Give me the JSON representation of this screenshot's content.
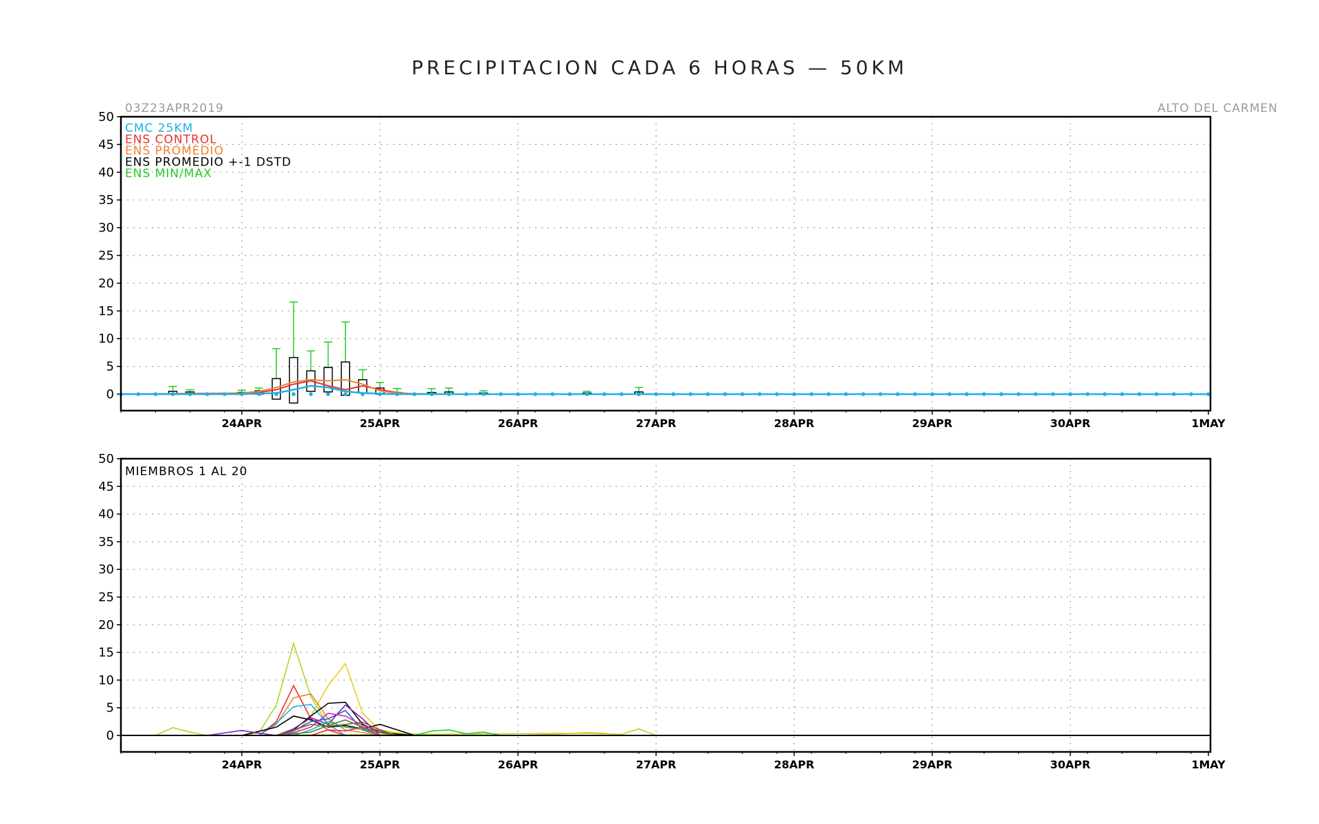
{
  "title": "PRECIPITACION CADA 6 HORAS — 50KM",
  "init_time": "03Z23APR2019",
  "location": "ALTO DEL CARMEN",
  "x_labels": [
    "24APR",
    "25APR",
    "26APR",
    "27APR",
    "28APR",
    "29APR",
    "30APR",
    "1MAY"
  ],
  "y_ticks": [
    0,
    5,
    10,
    15,
    20,
    25,
    30,
    35,
    40,
    45,
    50
  ],
  "colors": {
    "cmc": "#1ab0e8",
    "control": "#e83030",
    "promedio": "#f08030",
    "box": "#000000",
    "minmax": "#22cc22"
  },
  "chart_data": [
    {
      "type": "line",
      "x_unit": "days from 00Z 24APR",
      "xlim": [
        -0.875,
        7
      ],
      "ylim": [
        -3,
        50
      ],
      "grid": true,
      "legend_position": "top-left",
      "legend": {
        "cmc": "CMC 25KM",
        "control": "ENS CONTROL",
        "promedio": "ENS PROMEDIO",
        "std": "ENS PROMEDIO +-1 DSTD",
        "minmax": "ENS MIN/MAX"
      },
      "series": [
        {
          "key": "cmc",
          "name": "CMC 25KM",
          "x": [
            -0.875,
            0,
            0.25,
            0.375,
            0.5,
            0.625,
            0.75,
            0.875,
            1.0,
            1.125,
            1.25,
            1.5,
            2,
            3,
            4,
            5,
            6,
            7
          ],
          "values": [
            0,
            0,
            0.2,
            0.8,
            1.5,
            1.2,
            0.5,
            0.2,
            0.1,
            0,
            0,
            0,
            0,
            0,
            0,
            0,
            0,
            0
          ]
        },
        {
          "key": "control",
          "name": "ENS CONTROL",
          "x": [
            -0.875,
            0,
            0.125,
            0.25,
            0.375,
            0.5,
            0.625,
            0.75,
            0.875,
            1.0,
            1.125,
            1.25,
            1.5,
            2,
            7
          ],
          "values": [
            0,
            0,
            0.3,
            0.8,
            1.8,
            2.4,
            1.5,
            0.8,
            1.5,
            0.8,
            0.3,
            0,
            0,
            0,
            0
          ]
        },
        {
          "key": "promedio",
          "name": "ENS PROMEDIO",
          "x": [
            -0.875,
            -0.5,
            0,
            0.125,
            0.25,
            0.375,
            0.5,
            0.625,
            0.75,
            0.875,
            1.0,
            1.125,
            1.25,
            1.5,
            2,
            7
          ],
          "values": [
            0,
            0.1,
            0.2,
            0.5,
            1.2,
            2.2,
            2.6,
            2.4,
            2.6,
            1.8,
            0.6,
            0.2,
            0.1,
            0,
            0,
            0
          ]
        }
      ],
      "boxes": [
        {
          "x": -0.5,
          "low": 0,
          "high": 0.5,
          "max": 1.4
        },
        {
          "x": -0.375,
          "low": 0,
          "high": 0.4,
          "max": 0.8
        },
        {
          "x": 0,
          "low": 0,
          "high": 0.3,
          "max": 0.7
        },
        {
          "x": 0.125,
          "low": 0,
          "high": 0.6,
          "max": 1.1
        },
        {
          "x": 0.25,
          "low": -0.9,
          "high": 2.8,
          "max": 8.2
        },
        {
          "x": 0.375,
          "low": -1.6,
          "high": 6.6,
          "max": 16.6
        },
        {
          "x": 0.5,
          "low": 0.5,
          "high": 4.2,
          "max": 7.8
        },
        {
          "x": 0.625,
          "low": 0.4,
          "high": 4.8,
          "max": 9.4
        },
        {
          "x": 0.75,
          "low": -0.2,
          "high": 5.8,
          "max": 13.0
        },
        {
          "x": 0.875,
          "low": 0.2,
          "high": 2.6,
          "max": 4.4
        },
        {
          "x": 1.0,
          "low": 0,
          "high": 1.1,
          "max": 2.1
        },
        {
          "x": 1.125,
          "low": 0,
          "high": 0.3,
          "max": 1.0
        },
        {
          "x": 1.375,
          "low": 0,
          "high": 0.3,
          "max": 1.0
        },
        {
          "x": 1.5,
          "low": 0,
          "high": 0.4,
          "max": 1.1
        },
        {
          "x": 1.75,
          "low": 0,
          "high": 0.2,
          "max": 0.6
        },
        {
          "x": 2.5,
          "low": 0,
          "high": 0.2,
          "max": 0.5
        },
        {
          "x": 2.875,
          "low": 0,
          "high": 0.4,
          "max": 1.2
        }
      ]
    },
    {
      "type": "line",
      "title": "MIEMBROS 1 AL 20",
      "x_unit": "days from 00Z 24APR",
      "xlim": [
        -0.875,
        7
      ],
      "ylim": [
        -3,
        50
      ],
      "grid": true,
      "series": [
        {
          "color": "#c8c820",
          "x": [
            -0.625,
            -0.5,
            -0.375,
            -0.25,
            0,
            2.5,
            2.75,
            2.875,
            3.0
          ],
          "values": [
            0,
            1.4,
            0.6,
            0,
            0,
            0.4,
            0.2,
            1.2,
            0
          ]
        },
        {
          "color": "#a8d820",
          "x": [
            0,
            0.125,
            0.25,
            0.375,
            0.5,
            0.625,
            1.0,
            1.5
          ],
          "values": [
            0,
            0.5,
            5.5,
            16.6,
            7.0,
            2.0,
            0.5,
            0
          ]
        },
        {
          "color": "#e8d020",
          "x": [
            0.375,
            0.5,
            0.625,
            0.75,
            0.875,
            1.0,
            1.25
          ],
          "values": [
            0,
            3.5,
            9.0,
            13.0,
            4.0,
            1.0,
            0
          ]
        },
        {
          "color": "#e83030",
          "x": [
            0.125,
            0.25,
            0.375,
            0.5,
            0.625,
            0.75
          ],
          "values": [
            0,
            2.5,
            9.0,
            3.0,
            1.0,
            0
          ]
        },
        {
          "color": "#f08030",
          "x": [
            0.125,
            0.25,
            0.375,
            0.5,
            0.625,
            0.75,
            1.0
          ],
          "values": [
            0,
            2.0,
            6.8,
            7.5,
            3.0,
            1.0,
            0
          ]
        },
        {
          "color": "#1ab0e8",
          "x": [
            0.125,
            0.25,
            0.375,
            0.5,
            0.625,
            0.75
          ],
          "values": [
            0,
            2.2,
            5.2,
            5.6,
            2.0,
            0
          ]
        },
        {
          "color": "#000000",
          "x": [
            0.25,
            0.375,
            0.5,
            0.625,
            0.75,
            0.875,
            1.0,
            1.25
          ],
          "values": [
            0,
            1.0,
            3.5,
            5.8,
            6.0,
            2.0,
            0.5,
            0
          ]
        },
        {
          "color": "#000000",
          "x": [
            0,
            0.25,
            0.375,
            0.5,
            0.625,
            0.75,
            0.875,
            1.0,
            1.25
          ],
          "values": [
            0,
            1.5,
            3.5,
            2.8,
            1.5,
            1.8,
            1.2,
            2.0,
            0
          ]
        },
        {
          "color": "#1868b8",
          "x": [
            0.25,
            0.375,
            0.5,
            0.625,
            0.75,
            0.875,
            1.0
          ],
          "values": [
            0,
            0.8,
            2.5,
            3.0,
            4.5,
            1.0,
            0
          ]
        },
        {
          "color": "#8020c0",
          "x": [
            0.25,
            0.375,
            0.5,
            0.625,
            0.75,
            0.875,
            1.0
          ],
          "values": [
            0,
            1.2,
            3.2,
            2.0,
            5.5,
            3.0,
            0
          ]
        },
        {
          "color": "#d820c8",
          "x": [
            0.25,
            0.375,
            0.5,
            0.625,
            0.75,
            0.875,
            1.0,
            1.125
          ],
          "values": [
            0,
            0.5,
            1.5,
            4.0,
            3.5,
            1.8,
            0.8,
            0
          ]
        },
        {
          "color": "#8a5a20",
          "x": [
            0.25,
            0.375,
            0.5,
            0.625,
            0.75,
            0.875,
            1.0,
            1.125
          ],
          "values": [
            0,
            1.0,
            2.0,
            1.6,
            2.0,
            2.4,
            1.0,
            0
          ]
        },
        {
          "color": "#20b0a0",
          "x": [
            0.375,
            0.5,
            0.625,
            0.75,
            0.875,
            1.0
          ],
          "values": [
            0,
            1.0,
            2.5,
            1.5,
            1.2,
            0
          ]
        },
        {
          "color": "#22cc22",
          "x": [
            1.25,
            1.375,
            1.5,
            1.625,
            1.75,
            1.875,
            2.0
          ],
          "values": [
            0,
            0.8,
            1.0,
            0.3,
            0.6,
            0,
            0
          ]
        },
        {
          "color": "#3a8a30",
          "x": [
            0.25,
            0.5,
            0.625,
            0.75,
            0.875,
            1.0,
            1.125
          ],
          "values": [
            0,
            0.6,
            1.8,
            2.8,
            1.5,
            0.5,
            0
          ]
        },
        {
          "color": "#c8c820",
          "x": [
            2.0,
            2.25,
            2.5,
            2.625,
            2.75
          ],
          "values": [
            0,
            0.2,
            0.5,
            0.4,
            0
          ]
        },
        {
          "color": "#8020c0",
          "x": [
            -0.25,
            0,
            0.125,
            0.25
          ],
          "values": [
            0,
            0.9,
            0.4,
            0
          ]
        },
        {
          "color": "#e83030",
          "x": [
            0.5,
            0.625,
            0.75,
            0.875,
            1.0
          ],
          "values": [
            0,
            1.0,
            0.8,
            1.5,
            0
          ]
        }
      ]
    }
  ]
}
